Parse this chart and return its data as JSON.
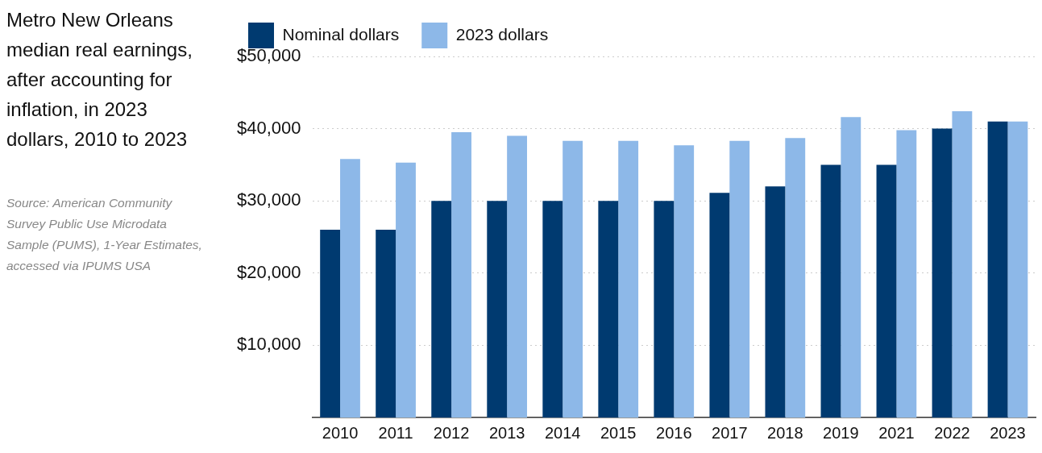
{
  "chart_data": {
    "type": "bar",
    "title": "Metro New Orleans median real earnings, after accounting for inflation, in 2023 dollars, 2010 to 2023",
    "annotations": [
      "Source: American Community Survey Public Use Microdata Sample (PUMS), 1-Year Estimates, accessed via IPUMS USA"
    ],
    "categories": [
      "2010",
      "2011",
      "2012",
      "2013",
      "2014",
      "2015",
      "2016",
      "2017",
      "2018",
      "2019",
      "2021",
      "2022",
      "2023"
    ],
    "series": [
      {
        "name": "Nominal dollars",
        "color": "#003a70",
        "values": [
          26000,
          26000,
          30000,
          30000,
          30000,
          30000,
          30000,
          31100,
          32000,
          35000,
          35000,
          40000,
          41000
        ]
      },
      {
        "name": "2023 dollars",
        "color": "#8db8e8",
        "values": [
          35800,
          35300,
          39500,
          39000,
          38300,
          38300,
          37700,
          38300,
          38700,
          41600,
          39800,
          42400,
          41000
        ]
      }
    ],
    "ylim": [
      0,
      50000
    ],
    "yticks": [
      {
        "value": 10000,
        "label": "$10,000"
      },
      {
        "value": 20000,
        "label": "$20,000"
      },
      {
        "value": 30000,
        "label": "$30,000"
      },
      {
        "value": 40000,
        "label": "$40,000"
      },
      {
        "value": 50000,
        "label": "$50,000"
      }
    ],
    "grid": "y",
    "legend": "top left"
  }
}
